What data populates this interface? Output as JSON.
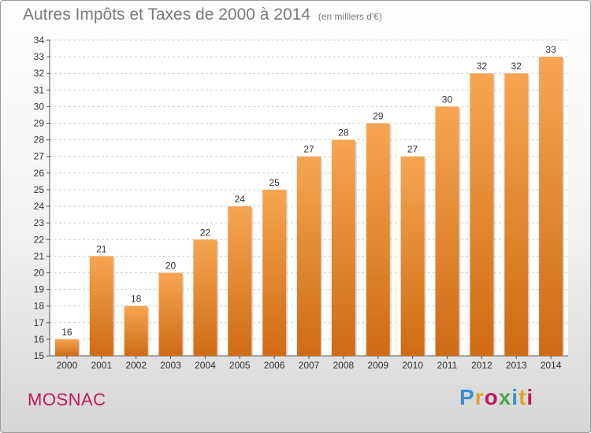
{
  "title": "Autres Impôts et Taxes de 2000 à 2014",
  "subtitle": "(en milliers d'€)",
  "location": "MOSNAC",
  "brand": {
    "name": "Proxiti",
    "letters": [
      {
        "char": "P",
        "color": "#3a8fd0"
      },
      {
        "char": "r",
        "color": "#e2a22b"
      },
      {
        "char": "o",
        "color": "#c0185a"
      },
      {
        "char": "x",
        "color": "#4aa84a"
      },
      {
        "char": "i",
        "color": "#3a8fd0"
      },
      {
        "char": "t",
        "color": "#e2a22b"
      },
      {
        "char": "i",
        "color": "#c0185a"
      }
    ]
  },
  "colors": {
    "bar_top": "#f7a552",
    "bar_bottom": "#cf6b14",
    "title": "#7a7a7a",
    "location": "#c0185a"
  },
  "chart_data": {
    "type": "bar",
    "categories": [
      "2000",
      "2001",
      "2002",
      "2003",
      "2004",
      "2005",
      "2006",
      "2007",
      "2008",
      "2009",
      "2010",
      "2011",
      "2012",
      "2013",
      "2014"
    ],
    "values": [
      16,
      21,
      18,
      20,
      22,
      24,
      25,
      27,
      28,
      29,
      27,
      30,
      32,
      32,
      33
    ],
    "ylim": [
      15,
      34
    ],
    "yticks": [
      15,
      16,
      17,
      18,
      19,
      20,
      21,
      22,
      23,
      24,
      25,
      26,
      27,
      28,
      29,
      30,
      31,
      32,
      33,
      34
    ],
    "grid": true,
    "xlabel": "",
    "ylabel": ""
  }
}
